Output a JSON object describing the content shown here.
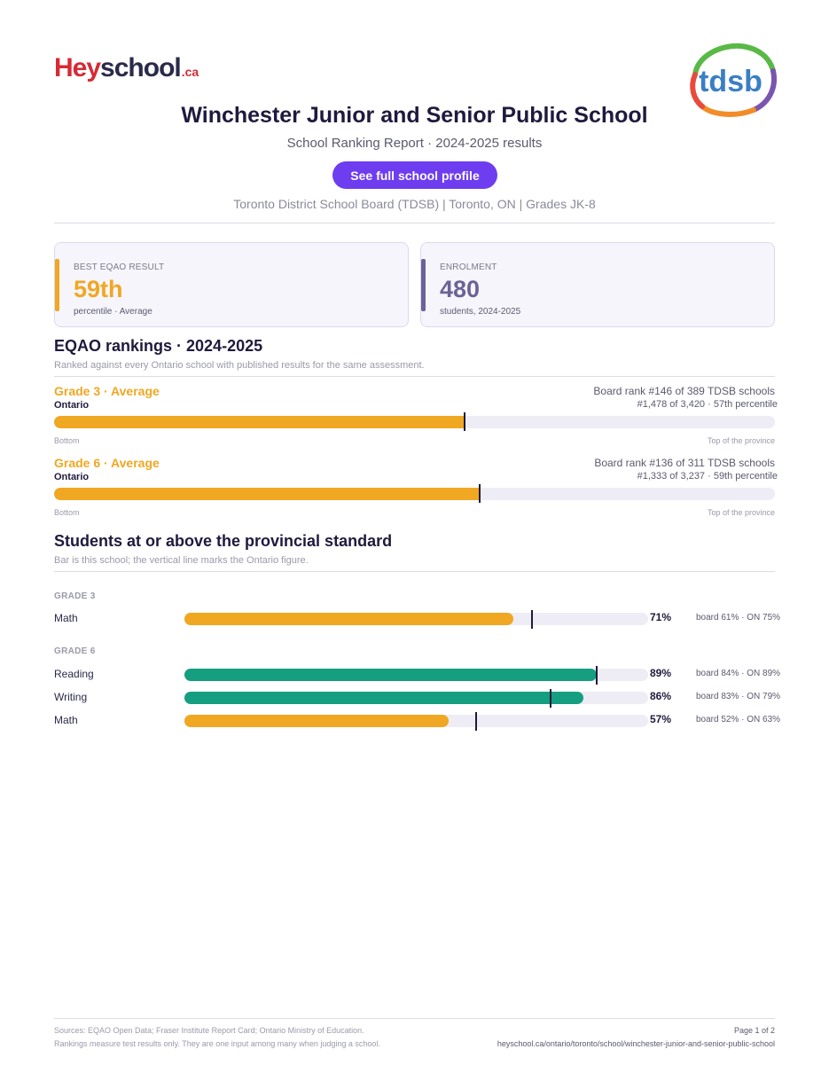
{
  "brand": {
    "logo_hey": "Hey",
    "logo_school": "school",
    "logo_ca": ".ca",
    "board_logo": "tdsb"
  },
  "header": {
    "title": "Winchester Junior and Senior Public School",
    "subtitle": "School Ranking Report  ·  2024-2025 results",
    "profile_button": "See full school profile",
    "meta": "Toronto District School Board (TDSB)  |  Toronto, ON  |  Grades JK-8"
  },
  "cards": {
    "eqao": {
      "label": "BEST EQAO RESULT",
      "value": "59th",
      "note": "percentile  ·  Average",
      "accent": "#f0a722"
    },
    "enrol": {
      "label": "ENROLMENT",
      "value": "480",
      "note": "students, 2024-2025",
      "accent": "#6b6396"
    }
  },
  "rankings": {
    "title": "EQAO rankings  ·  2024-2025",
    "subtitle": "Ranked against every Ontario school with published results for the same assessment.",
    "items": [
      {
        "grade": "Grade 3  ·  Average",
        "region": "Ontario",
        "board_rank": "Board rank #146 of 389 TDSB schools",
        "prov_rank": "#1,478 of 3,420  ·  57th percentile",
        "percentile": 57,
        "bottom_label": "Bottom",
        "top_label": "Top of the province"
      },
      {
        "grade": "Grade 6  ·  Average",
        "region": "Ontario",
        "board_rank": "Board rank #136 of 311 TDSB schools",
        "prov_rank": "#1,333 of 3,237  ·  59th percentile",
        "percentile": 59,
        "bottom_label": "Bottom",
        "top_label": "Top of the province"
      }
    ]
  },
  "standards": {
    "title": "Students at or above the provincial standard",
    "subtitle": "Bar is this school; the vertical line marks the Ontario figure.",
    "groups": [
      {
        "label": "GRADE 3",
        "rows": [
          {
            "subject": "Math",
            "school": 71,
            "ontario": 75,
            "pct": "71%",
            "compare": "board 61%  ·  ON 75%",
            "color": "#f0a722"
          }
        ]
      },
      {
        "label": "GRADE 6",
        "rows": [
          {
            "subject": "Reading",
            "school": 89,
            "ontario": 89,
            "pct": "89%",
            "compare": "board 84%  ·  ON 89%",
            "color": "#169e80"
          },
          {
            "subject": "Writing",
            "school": 86,
            "ontario": 79,
            "pct": "86%",
            "compare": "board 83%  ·  ON 79%",
            "color": "#169e80"
          },
          {
            "subject": "Math",
            "school": 57,
            "ontario": 63,
            "pct": "57%",
            "compare": "board 52%  ·  ON 63%",
            "color": "#f0a722"
          }
        ]
      }
    ]
  },
  "footer": {
    "sources": "Sources: EQAO Open Data; Fraser Institute Report Card; Ontario Ministry of Education.",
    "disclaimer": "Rankings measure test results only. They are one input among many when judging a school.",
    "page": "Page 1 of 2",
    "url": "heyschool.ca/ontario/toronto/school/winchester-junior-and-senior-public-school"
  }
}
